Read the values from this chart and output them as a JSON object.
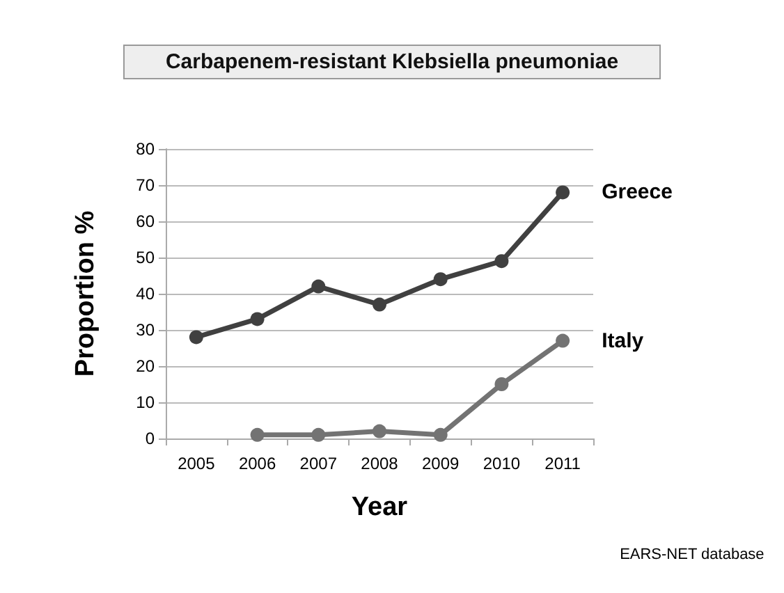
{
  "chart_data": {
    "type": "line",
    "title": "Carbapenem-resistant Klebsiella pneumoniae",
    "xlabel": "Year",
    "ylabel": "Proportion %",
    "categories": [
      "2005",
      "2006",
      "2007",
      "2008",
      "2009",
      "2010",
      "2011"
    ],
    "series": [
      {
        "name": "Greece",
        "color": "#404040",
        "values": [
          28,
          33,
          42,
          37,
          44,
          49,
          68
        ]
      },
      {
        "name": "Italy",
        "color": "#737373",
        "values": [
          null,
          1,
          1,
          2,
          1,
          15,
          27
        ]
      }
    ],
    "ylim": [
      0,
      80
    ],
    "yticks": [
      0,
      10,
      20,
      30,
      40,
      50,
      60,
      70,
      80
    ],
    "grid": "y",
    "legend": false,
    "marker": "circle",
    "line_style": "solid",
    "annotations": [
      "EARS-NET database"
    ]
  }
}
